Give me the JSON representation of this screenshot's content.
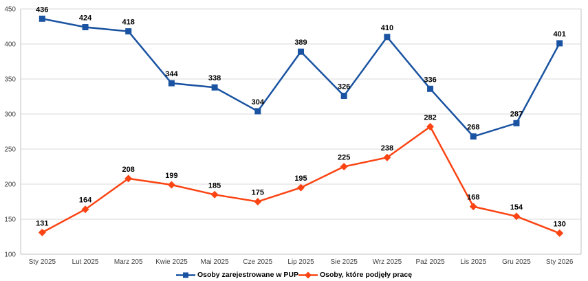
{
  "chart_data": {
    "type": "line",
    "title": "",
    "categories": [
      "Sty 2025",
      "Lut 2025",
      "Marz 205",
      "Kwie 2025",
      "Mai 2025",
      "Cze 2025",
      "Lip 2025",
      "Sie 2025",
      "Wrz 2025",
      "Paź 2025",
      "Lis 2025",
      "Gru 2025",
      "Sty 2026"
    ],
    "series": [
      {
        "name": "Osoby zarejestrowane w PUP",
        "color": "#1A53A1",
        "marker": "square",
        "values": [
          436,
          424,
          418,
          344,
          338,
          304,
          389,
          326,
          410,
          336,
          268,
          287,
          401
        ]
      },
      {
        "name": "Osoby, które podjęły pracę",
        "color": "#FB4413",
        "marker": "diamond",
        "values": [
          131,
          164,
          208,
          199,
          185,
          175,
          195,
          225,
          238,
          282,
          168,
          154,
          130
        ]
      }
    ],
    "ylim": [
      100,
      450
    ],
    "yticks": [
      100,
      150,
      200,
      250,
      300,
      350,
      400,
      450
    ],
    "grid": true,
    "data_labels": true,
    "legend_position": "bottom"
  },
  "styles": {
    "background": "#FFFFFF",
    "grid_color": "#D9D9D9",
    "axis_color": "#BFBFBF",
    "tick_label_color": "#404040",
    "data_label_color": "#000000"
  }
}
